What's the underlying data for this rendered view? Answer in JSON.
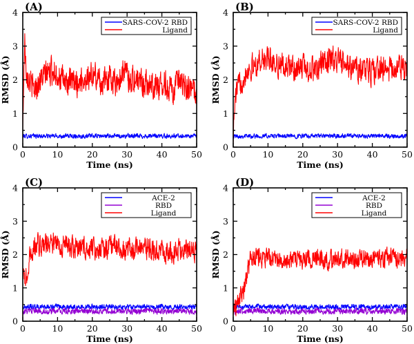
{
  "figure": {
    "panels": [
      {
        "letter": "(A)",
        "xlabel": "Time (ns)",
        "ylabel": "RMSD (Å)",
        "legend": [
          "SARS-COV-2 RBD",
          "Ligand"
        ]
      },
      {
        "letter": "(B)",
        "xlabel": "Time (ns)",
        "ylabel": "RMSD (Å)",
        "legend": [
          "SARS-COV-2 RBD",
          "Ligand"
        ]
      },
      {
        "letter": "(C)",
        "xlabel": "Time (ns)",
        "ylabel": "RMSD (Å)",
        "legend": [
          "ACE-2",
          "RBD",
          "Ligand"
        ]
      },
      {
        "letter": "(D)",
        "xlabel": "Time (ns)",
        "ylabel": "RMSD (Å)",
        "legend": [
          "ACE-2",
          "RBD",
          "Ligand"
        ]
      }
    ]
  },
  "colors": {
    "red": "#ff0000",
    "blue": "#0000ff",
    "purple": "#9400d3",
    "axis": "#000000"
  },
  "chart_data": [
    {
      "type": "line",
      "panel": "(A)",
      "xlabel": "Time (ns)",
      "ylabel": "RMSD (Å)",
      "xlim": [
        0,
        50
      ],
      "ylim": [
        0,
        4
      ],
      "xticks": [
        0,
        10,
        20,
        30,
        40,
        50
      ],
      "yticks": [
        0,
        1,
        2,
        3,
        4
      ],
      "legend_position": "top-right",
      "series": [
        {
          "name": "SARS-COV-2 RBD",
          "color": "#0000ff",
          "x": [
            0,
            50
          ],
          "y": [
            0.33,
            0.33
          ],
          "noise": 0.09
        },
        {
          "name": "Ligand",
          "color": "#ff0000",
          "x": [
            0,
            0.3,
            0.6,
            1,
            2,
            3,
            5,
            7,
            9,
            11,
            13,
            15,
            17,
            19,
            21,
            23,
            25,
            27,
            29,
            31,
            33,
            35,
            37,
            39,
            41,
            43,
            45,
            47,
            49,
            50
          ],
          "y": [
            0.4,
            2.2,
            3.2,
            2.3,
            2.0,
            1.7,
            2.0,
            2.2,
            2.3,
            2.0,
            1.9,
            1.9,
            2.0,
            2.1,
            2.1,
            1.9,
            2.1,
            1.9,
            2.3,
            2.0,
            2.0,
            1.9,
            1.9,
            1.8,
            1.9,
            1.7,
            1.9,
            1.7,
            1.7,
            1.6
          ],
          "noise": 0.55
        }
      ]
    },
    {
      "type": "line",
      "panel": "(B)",
      "xlabel": "Time (ns)",
      "ylabel": "RMSD (Å)",
      "xlim": [
        0,
        50
      ],
      "ylim": [
        0,
        4
      ],
      "xticks": [
        0,
        10,
        20,
        30,
        40,
        50
      ],
      "yticks": [
        0,
        1,
        2,
        3,
        4
      ],
      "legend_position": "top-right",
      "series": [
        {
          "name": "SARS-COV-2 RBD",
          "color": "#0000ff",
          "x": [
            0,
            50
          ],
          "y": [
            0.33,
            0.33
          ],
          "noise": 0.09
        },
        {
          "name": "Ligand",
          "color": "#ff0000",
          "x": [
            0,
            0.5,
            1,
            2,
            3,
            4,
            6,
            8,
            10,
            12,
            14,
            16,
            18,
            20,
            22,
            24,
            26,
            28,
            30,
            32,
            34,
            36,
            38,
            40,
            42,
            44,
            46,
            48,
            50
          ],
          "y": [
            0.4,
            1.3,
            1.7,
            1.9,
            2.1,
            2.3,
            2.4,
            2.6,
            2.6,
            2.5,
            2.4,
            2.4,
            2.3,
            2.4,
            2.3,
            2.3,
            2.5,
            2.6,
            2.6,
            2.4,
            2.4,
            2.3,
            2.3,
            2.2,
            2.4,
            2.3,
            2.3,
            2.4,
            2.3
          ],
          "noise": 0.5
        }
      ]
    },
    {
      "type": "line",
      "panel": "(C)",
      "xlabel": "Time (ns)",
      "ylabel": "RMSD (Å)",
      "xlim": [
        0,
        50
      ],
      "ylim": [
        0,
        4
      ],
      "xticks": [
        0,
        10,
        20,
        30,
        40,
        50
      ],
      "yticks": [
        0,
        1,
        2,
        3,
        4
      ],
      "legend_position": "top-right",
      "series": [
        {
          "name": "ACE-2",
          "color": "#0000ff",
          "x": [
            0,
            50
          ],
          "y": [
            0.43,
            0.43
          ],
          "noise": 0.1
        },
        {
          "name": "RBD",
          "color": "#9400d3",
          "x": [
            0,
            50
          ],
          "y": [
            0.3,
            0.3
          ],
          "noise": 0.12
        },
        {
          "name": "Ligand",
          "color": "#ff0000",
          "x": [
            0,
            1,
            1.5,
            2,
            3,
            4,
            6,
            8,
            10,
            12,
            14,
            16,
            18,
            20,
            22,
            24,
            26,
            28,
            30,
            32,
            34,
            36,
            38,
            40,
            42,
            44,
            46,
            48,
            50
          ],
          "y": [
            1.3,
            1.3,
            1.4,
            1.9,
            2.2,
            2.3,
            2.3,
            2.4,
            2.3,
            2.3,
            2.2,
            2.2,
            2.2,
            2.2,
            2.2,
            2.2,
            2.3,
            2.2,
            2.2,
            2.2,
            2.2,
            2.2,
            2.1,
            2.1,
            2.1,
            2.1,
            2.2,
            2.2,
            2.1
          ],
          "noise": 0.45
        }
      ]
    },
    {
      "type": "line",
      "panel": "(D)",
      "xlabel": "Time (ns)",
      "ylabel": "RMSD (Å)",
      "xlim": [
        0,
        50
      ],
      "ylim": [
        0,
        4
      ],
      "xticks": [
        0,
        10,
        20,
        30,
        40,
        50
      ],
      "yticks": [
        0,
        1,
        2,
        3,
        4
      ],
      "legend_position": "top-right",
      "series": [
        {
          "name": "ACE-2",
          "color": "#0000ff",
          "x": [
            0,
            50
          ],
          "y": [
            0.43,
            0.43
          ],
          "noise": 0.1
        },
        {
          "name": "RBD",
          "color": "#9400d3",
          "x": [
            0,
            50
          ],
          "y": [
            0.3,
            0.3
          ],
          "noise": 0.12
        },
        {
          "name": "Ligand",
          "color": "#ff0000",
          "x": [
            0,
            1,
            2,
            3,
            4,
            5,
            7,
            10,
            13,
            16,
            19,
            22,
            25,
            28,
            31,
            34,
            37,
            40,
            43,
            46,
            47,
            48,
            50
          ],
          "y": [
            0.3,
            0.5,
            0.7,
            0.9,
            1.4,
            1.9,
            1.9,
            1.9,
            1.85,
            1.9,
            1.85,
            1.9,
            1.9,
            1.85,
            1.9,
            1.85,
            1.9,
            1.9,
            1.85,
            2.0,
            1.9,
            1.9,
            1.9
          ],
          "noise": 0.38
        }
      ]
    }
  ]
}
